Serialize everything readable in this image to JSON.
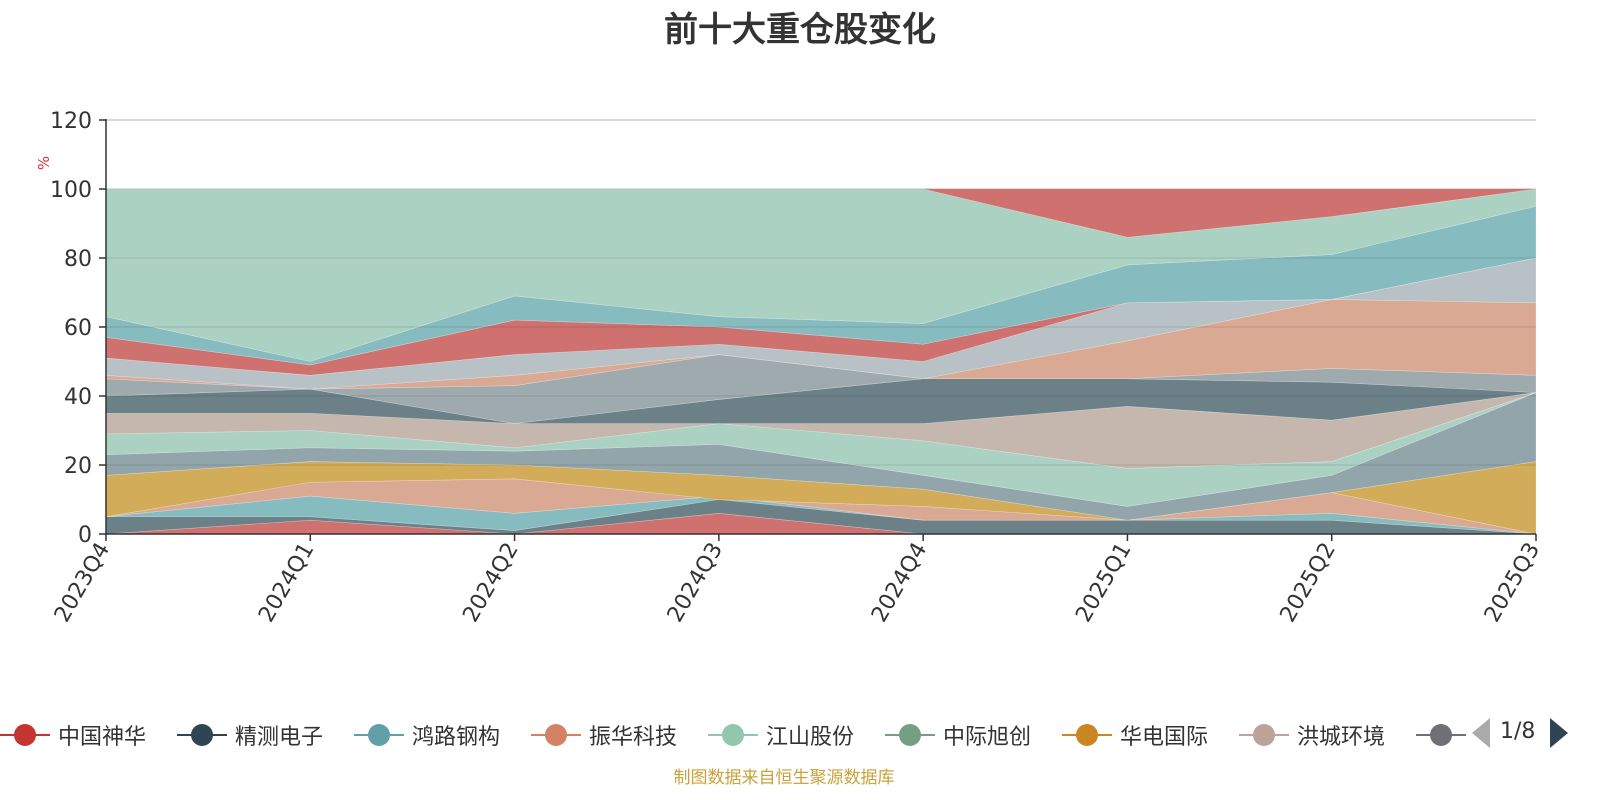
{
  "title": "前十大重仓股变化",
  "source": "制图数据来自恒生聚源数据库",
  "pager": {
    "text": "1/8"
  },
  "chart_data": {
    "type": "area",
    "title": "前十大重仓股变化",
    "ylabel": "%",
    "ylim": [
      0,
      120
    ],
    "yticks": [
      0,
      20,
      40,
      60,
      80,
      100,
      120
    ],
    "categories": [
      "2023Q4",
      "2024Q1",
      "2024Q2",
      "2024Q3",
      "2024Q4",
      "2025Q1",
      "2025Q2",
      "2025Q3"
    ],
    "grid": true,
    "legend_position": "bottom",
    "boundaries": [
      [
        0,
        0,
        0,
        0,
        0,
        0,
        0,
        0
      ],
      [
        0,
        4,
        0,
        6,
        0,
        0,
        0,
        0
      ],
      [
        5,
        5,
        1,
        10,
        4,
        4,
        4,
        0
      ],
      [
        5,
        11,
        6,
        11,
        4,
        4,
        6,
        0
      ],
      [
        5,
        15,
        16,
        10,
        8,
        4,
        12,
        0
      ],
      [
        17,
        21,
        20,
        17,
        13,
        4,
        12,
        21
      ],
      [
        23,
        25,
        24,
        26,
        17,
        8,
        17,
        41
      ],
      [
        29,
        30,
        25,
        32,
        27,
        19,
        21,
        41
      ],
      [
        35,
        35,
        32,
        32,
        32,
        37,
        33,
        41
      ],
      [
        40,
        42,
        32,
        39,
        45,
        45,
        44,
        41
      ],
      [
        45,
        42,
        43,
        52,
        45,
        45,
        48,
        46
      ],
      [
        46,
        42,
        46,
        52,
        45,
        56,
        68,
        67
      ],
      [
        51,
        46,
        52,
        55,
        50,
        67,
        68,
        80
      ],
      [
        57,
        49,
        62,
        60,
        55,
        67,
        68,
        80
      ],
      [
        63,
        50,
        69,
        63,
        61,
        78,
        81,
        95
      ],
      [
        100,
        100,
        100,
        100,
        100,
        86,
        92,
        100
      ],
      [
        100,
        100,
        100,
        100,
        100,
        100,
        100,
        100
      ]
    ],
    "band_colors": [
      "#d65a5a",
      "#5d6d7a",
      "#7cb4bd",
      "#e39f89",
      "#d9a23f",
      "#8a9aa5",
      "#a8d0c0",
      "#c9b0a8",
      "#5d6d7a",
      "#9aa0a8",
      "#e39f89",
      "#b8bcc6",
      "#d65a5a",
      "#7cb4bd",
      "#a8d0c0",
      "#d65a5a"
    ],
    "top_band_color": "#b3d7c6",
    "legend": [
      {
        "name": "中国神华",
        "color": "#c23531"
      },
      {
        "name": "精测电子",
        "color": "#2f4554"
      },
      {
        "name": "鸿路钢构",
        "color": "#61a0a8"
      },
      {
        "name": "振华科技",
        "color": "#d48265"
      },
      {
        "name": "江山股份",
        "color": "#91c7ae"
      },
      {
        "name": "中际旭创",
        "color": "#749f83"
      },
      {
        "name": "华电国际",
        "color": "#ca8622"
      },
      {
        "name": "洪城环境",
        "color": "#bda29a"
      },
      {
        "name": "",
        "color": "#6e7074"
      }
    ]
  }
}
